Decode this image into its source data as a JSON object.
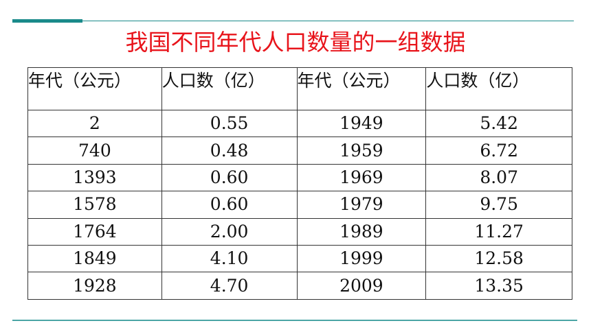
{
  "title": "我国不同年代人口数量的一组数据",
  "table": {
    "header": [
      "年代（公元）",
      "人口数（亿）",
      "年代（公元）",
      "人口数（亿）"
    ],
    "rows": [
      [
        "2",
        "0.55",
        "1949",
        "5.42"
      ],
      [
        "740",
        "0.48",
        "1959",
        "6.72"
      ],
      [
        "1393",
        "0.60",
        "1969",
        "8.07"
      ],
      [
        "1578",
        "0.60",
        "1979",
        "9.75"
      ],
      [
        "1764",
        "2.00",
        "1989",
        "11.27"
      ],
      [
        "1849",
        "4.10",
        "1999",
        "12.58"
      ],
      [
        "1928",
        "4.70",
        "2009",
        "13.35"
      ]
    ]
  }
}
